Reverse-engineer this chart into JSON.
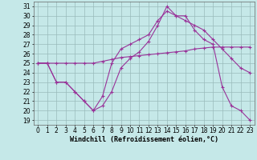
{
  "xlabel": "Windchill (Refroidissement éolien,°C)",
  "background_color": "#c5e8e8",
  "grid_color": "#99bbbb",
  "line_color": "#993399",
  "xlim": [
    -0.5,
    23.5
  ],
  "ylim": [
    18.5,
    31.5
  ],
  "xticks": [
    0,
    1,
    2,
    3,
    4,
    5,
    6,
    7,
    8,
    9,
    10,
    11,
    12,
    13,
    14,
    15,
    16,
    17,
    18,
    19,
    20,
    21,
    22,
    23
  ],
  "yticks": [
    19,
    20,
    21,
    22,
    23,
    24,
    25,
    26,
    27,
    28,
    29,
    30,
    31
  ],
  "series1": [
    25.0,
    25.0,
    23.0,
    23.0,
    22.0,
    21.0,
    20.0,
    20.5,
    22.0,
    24.5,
    25.5,
    26.2,
    27.3,
    29.0,
    31.0,
    30.0,
    30.0,
    28.5,
    27.5,
    27.0,
    22.5,
    20.5,
    20.0,
    19.0
  ],
  "series2": [
    25.0,
    25.0,
    25.0,
    25.0,
    25.0,
    25.0,
    25.0,
    25.2,
    25.4,
    25.6,
    25.7,
    25.8,
    25.9,
    26.0,
    26.1,
    26.2,
    26.3,
    26.5,
    26.6,
    26.7,
    26.7,
    26.7,
    26.7,
    26.7
  ],
  "series3": [
    25.0,
    25.0,
    23.0,
    23.0,
    22.0,
    21.0,
    20.0,
    21.5,
    25.0,
    26.5,
    27.0,
    27.5,
    28.0,
    29.5,
    30.5,
    30.0,
    29.5,
    29.0,
    28.5,
    27.5,
    26.5,
    25.5,
    24.5,
    24.0
  ],
  "marker": "+",
  "markersize": 3,
  "linewidth": 0.8,
  "xlabel_fontsize": 6,
  "tick_fontsize": 5.5
}
